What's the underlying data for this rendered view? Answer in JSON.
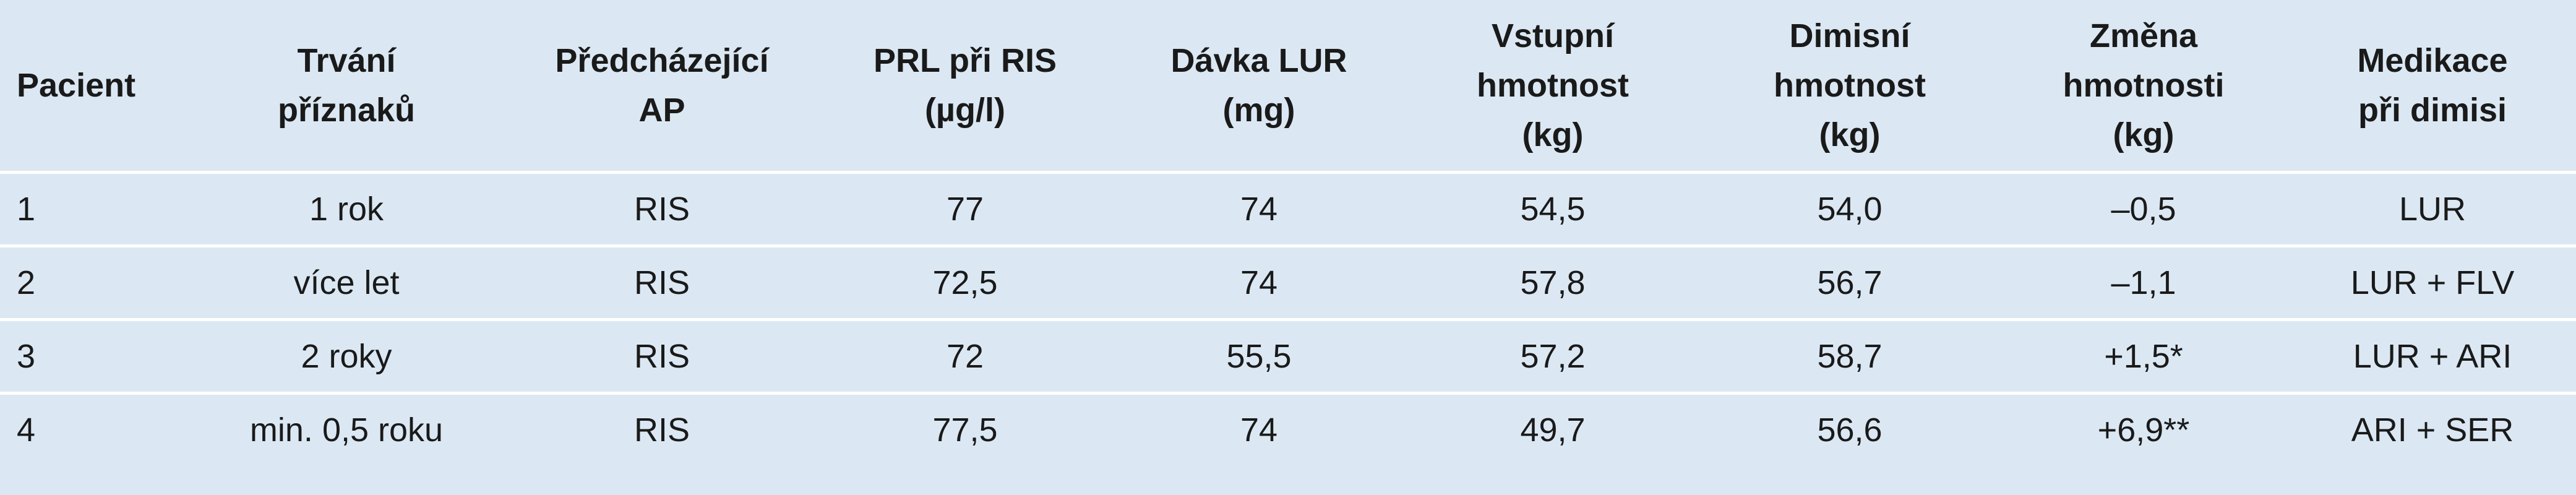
{
  "table": {
    "header": [
      [
        "Pacient"
      ],
      [
        "Trvání",
        "příznaků"
      ],
      [
        "Předcházející",
        "AP"
      ],
      [
        "PRL při RIS",
        "(µg/l)"
      ],
      [
        "Dávka LUR",
        "(mg)"
      ],
      [
        "Vstupní",
        "hmotnost",
        "(kg)"
      ],
      [
        "Dimisní",
        "hmotnost",
        "(kg)"
      ],
      [
        "Změna",
        "hmotnosti",
        "(kg)"
      ],
      [
        "Medikace",
        "při dimisi"
      ]
    ],
    "rows": [
      [
        "1",
        "1 rok",
        "RIS",
        "77",
        "74",
        "54,5",
        "54,0",
        "–0,5",
        "LUR"
      ],
      [
        "2",
        "více let",
        "RIS",
        "72,5",
        "74",
        "57,8",
        "56,7",
        "–1,1",
        "LUR + FLV"
      ],
      [
        "3",
        "2 roky",
        "RIS",
        "72",
        "55,5",
        "57,2",
        "58,7",
        "+1,5*",
        "LUR + ARI"
      ],
      [
        "4",
        "min. 0,5 roku",
        "RIS",
        "77,5",
        "74",
        "49,7",
        "56,6",
        "+6,9**",
        "ARI + SER"
      ]
    ]
  }
}
